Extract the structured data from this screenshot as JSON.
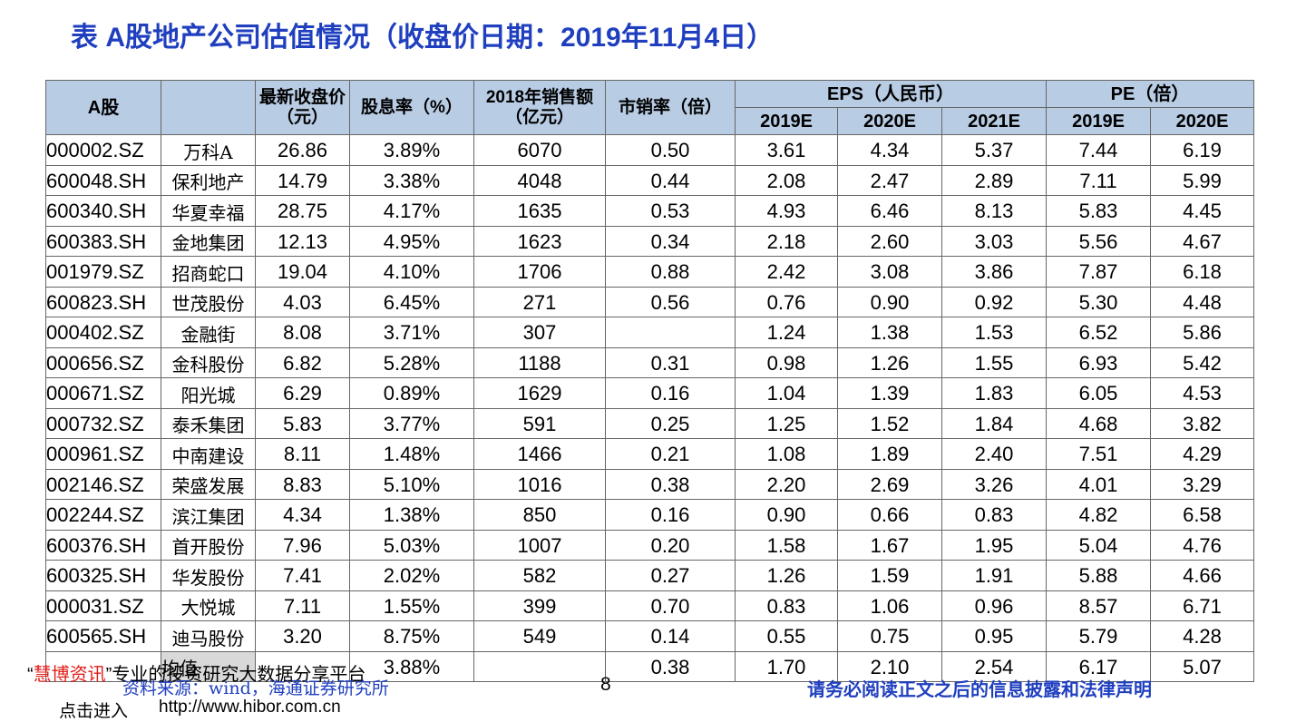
{
  "header": {
    "title": "表 A股地产公司估值情况（收盘价日期：2019年11月4日）"
  },
  "table": {
    "columns": {
      "a_share": "A股",
      "price": "最新收盘价（元）",
      "yield": "股息率（%）",
      "sales": "2018年销售额（亿元）",
      "ps": "市销率（倍）",
      "eps": "EPS（人民币）",
      "pe": "PE（倍）",
      "eps_years": [
        "2019E",
        "2020E",
        "2021E"
      ],
      "pe_years": [
        "2019E",
        "2020E"
      ]
    },
    "rows": [
      [
        "000002.SZ",
        "万科A",
        "26.86",
        "3.89%",
        "6070",
        "0.50",
        "3.61",
        "4.34",
        "5.37",
        "7.44",
        "6.19"
      ],
      [
        "600048.SH",
        "保利地产",
        "14.79",
        "3.38%",
        "4048",
        "0.44",
        "2.08",
        "2.47",
        "2.89",
        "7.11",
        "5.99"
      ],
      [
        "600340.SH",
        "华夏幸福",
        "28.75",
        "4.17%",
        "1635",
        "0.53",
        "4.93",
        "6.46",
        "8.13",
        "5.83",
        "4.45"
      ],
      [
        "600383.SH",
        "金地集团",
        "12.13",
        "4.95%",
        "1623",
        "0.34",
        "2.18",
        "2.60",
        "3.03",
        "5.56",
        "4.67"
      ],
      [
        "001979.SZ",
        "招商蛇口",
        "19.04",
        "4.10%",
        "1706",
        "0.88",
        "2.42",
        "3.08",
        "3.86",
        "7.87",
        "6.18"
      ],
      [
        "600823.SH",
        "世茂股份",
        "4.03",
        "6.45%",
        "271",
        "0.56",
        "0.76",
        "0.90",
        "0.92",
        "5.30",
        "4.48"
      ],
      [
        "000402.SZ",
        "金融街",
        "8.08",
        "3.71%",
        "307",
        null,
        "1.24",
        "1.38",
        "1.53",
        "6.52",
        "5.86"
      ],
      [
        "000656.SZ",
        "金科股份",
        "6.82",
        "5.28%",
        "1188",
        "0.31",
        "0.98",
        "1.26",
        "1.55",
        "6.93",
        "5.42"
      ],
      [
        "000671.SZ",
        "阳光城",
        "6.29",
        "0.89%",
        "1629",
        "0.16",
        "1.04",
        "1.39",
        "1.83",
        "6.05",
        "4.53"
      ],
      [
        "000732.SZ",
        "泰禾集团",
        "5.83",
        "3.77%",
        "591",
        "0.25",
        "1.25",
        "1.52",
        "1.84",
        "4.68",
        "3.82"
      ],
      [
        "000961.SZ",
        "中南建设",
        "8.11",
        "1.48%",
        "1466",
        "0.21",
        "1.08",
        "1.89",
        "2.40",
        "7.51",
        "4.29"
      ],
      [
        "002146.SZ",
        "荣盛发展",
        "8.83",
        "5.10%",
        "1016",
        "0.38",
        "2.20",
        "2.69",
        "3.26",
        "4.01",
        "3.29"
      ],
      [
        "002244.SZ",
        "滨江集团",
        "4.34",
        "1.38%",
        "850",
        "0.16",
        "0.90",
        "0.66",
        "0.83",
        "4.82",
        "6.58"
      ],
      [
        "600376.SH",
        "首开股份",
        "7.96",
        "5.03%",
        "1007",
        "0.20",
        "1.58",
        "1.67",
        "1.95",
        "5.04",
        "4.76"
      ],
      [
        "600325.SH",
        "华发股份",
        "7.41",
        "2.02%",
        "582",
        "0.27",
        "1.26",
        "1.59",
        "1.91",
        "5.88",
        "4.66"
      ],
      [
        "000031.SZ",
        "大悦城",
        "7.11",
        "1.55%",
        "399",
        "0.70",
        "0.83",
        "1.06",
        "0.96",
        "8.57",
        "6.71"
      ],
      [
        "600565.SH",
        "迪马股份",
        "3.20",
        "8.75%",
        "549",
        "0.14",
        "0.55",
        "0.75",
        "0.95",
        "5.79",
        "4.28"
      ],
      [
        null,
        "均值",
        null,
        "3.88%",
        null,
        "0.38",
        "1.70",
        "2.10",
        "2.54",
        "6.17",
        "5.07"
      ]
    ]
  },
  "footer": {
    "brand_line": [
      "“",
      "慧博资讯",
      "”专业的投资研究大数据分享平台"
    ],
    "source": "资料来源：wind，海通证券研究所",
    "page": "8",
    "disclaimer": "请务必阅读正文之后的信息披露和法律声明",
    "link_prompt": "点击进入",
    "url": "http://www.hibor.com.cn"
  }
}
